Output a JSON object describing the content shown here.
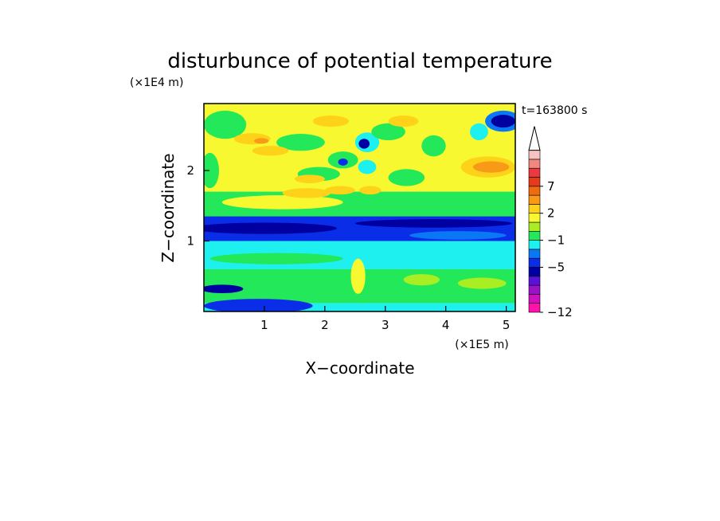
{
  "chart_data": {
    "type": "heatmap",
    "title": "disturbunce of potential temperature",
    "xlabel": "X−coordinate",
    "ylabel": "Z−coordinate",
    "x_scale_label": "(×1E5 m)",
    "y_scale_label": "(×1E4 m)",
    "time_label": "t=163800 s",
    "xlim": [
      0,
      5.15
    ],
    "ylim": [
      0,
      2.95
    ],
    "x_ticks": [
      {
        "value": 1,
        "label": "1"
      },
      {
        "value": 2,
        "label": "2"
      },
      {
        "value": 3,
        "label": "3"
      },
      {
        "value": 4,
        "label": "4"
      },
      {
        "value": 5,
        "label": "5"
      }
    ],
    "y_ticks": [
      {
        "value": 1,
        "label": "1"
      },
      {
        "value": 2,
        "label": "2"
      }
    ],
    "colorbar": {
      "levels_bottom_to_top": [
        "#ff11aa",
        "#d011c0",
        "#9a12c8",
        "#5a11d8",
        "#0000a0",
        "#0a2ee8",
        "#0a78f5",
        "#1ef0f0",
        "#22e85a",
        "#a8ee22",
        "#f8f830",
        "#ffd21a",
        "#f89a18",
        "#f06a10",
        "#e63a1a",
        "#e83a40",
        "#f08880",
        "#f8c2c2"
      ],
      "tick_labels": [
        {
          "label": "−12",
          "level": 0
        },
        {
          "label": "−5",
          "level": 5
        },
        {
          "label": "−1",
          "level": 8
        },
        {
          "label": "2",
          "level": 11
        },
        {
          "label": "7",
          "level": 14
        }
      ]
    },
    "field": {
      "background_color": "#f8f830",
      "regions": [
        {
          "kind": "layer",
          "z_from": 0.0,
          "z_to": 0.12,
          "x_from": 0,
          "x_to": 5.15,
          "color": "#1ef0f0"
        },
        {
          "kind": "layer",
          "z_from": 0.12,
          "z_to": 0.6,
          "x_from": 0,
          "x_to": 5.15,
          "color": "#22e85a"
        },
        {
          "kind": "layer",
          "z_from": 0.6,
          "z_to": 1.0,
          "x_from": 0,
          "x_to": 5.15,
          "color": "#1ef0f0"
        },
        {
          "kind": "layer",
          "z_from": 1.0,
          "z_to": 1.35,
          "x_from": 0,
          "x_to": 5.15,
          "color": "#0a2ee8"
        },
        {
          "kind": "layer",
          "z_from": 1.35,
          "z_to": 1.7,
          "x_from": 0,
          "x_to": 5.15,
          "color": "#22e85a"
        },
        {
          "kind": "blob",
          "x": 0.9,
          "z": 0.08,
          "rx": 0.9,
          "rz": 0.1,
          "color": "#0a2ee8"
        },
        {
          "kind": "blob",
          "x": 0.3,
          "z": 0.32,
          "rx": 0.35,
          "rz": 0.06,
          "color": "#0000a0"
        },
        {
          "kind": "blob",
          "x": 2.55,
          "z": 0.5,
          "rx": 0.12,
          "rz": 0.25,
          "color": "#f8f830"
        },
        {
          "kind": "blob",
          "x": 1.2,
          "z": 0.75,
          "rx": 1.1,
          "rz": 0.08,
          "color": "#22e85a"
        },
        {
          "kind": "blob",
          "x": 3.6,
          "z": 0.45,
          "rx": 0.3,
          "rz": 0.08,
          "color": "#a8ee22"
        },
        {
          "kind": "blob",
          "x": 4.6,
          "z": 0.4,
          "rx": 0.4,
          "rz": 0.08,
          "color": "#a8ee22"
        },
        {
          "kind": "blob",
          "x": 1.0,
          "z": 1.18,
          "rx": 1.2,
          "rz": 0.08,
          "color": "#0000a0"
        },
        {
          "kind": "blob",
          "x": 3.8,
          "z": 1.25,
          "rx": 1.3,
          "rz": 0.06,
          "color": "#0000a0"
        },
        {
          "kind": "blob",
          "x": 4.2,
          "z": 1.08,
          "rx": 0.8,
          "rz": 0.06,
          "color": "#0a78f5"
        },
        {
          "kind": "blob",
          "x": 1.3,
          "z": 1.55,
          "rx": 1.0,
          "rz": 0.1,
          "color": "#f8f830"
        },
        {
          "kind": "blob",
          "x": 1.7,
          "z": 1.68,
          "rx": 0.4,
          "rz": 0.07,
          "color": "#ffd21a"
        },
        {
          "kind": "blob",
          "x": 1.9,
          "z": 1.95,
          "rx": 0.35,
          "rz": 0.1,
          "color": "#22e85a"
        },
        {
          "kind": "blob",
          "x": 2.3,
          "z": 2.15,
          "rx": 0.25,
          "rz": 0.12,
          "color": "#22e85a"
        },
        {
          "kind": "blob",
          "x": 2.3,
          "z": 2.12,
          "rx": 0.08,
          "rz": 0.05,
          "color": "#0a2ee8"
        },
        {
          "kind": "blob",
          "x": 2.7,
          "z": 2.4,
          "rx": 0.2,
          "rz": 0.14,
          "color": "#1ef0f0"
        },
        {
          "kind": "blob",
          "x": 2.65,
          "z": 2.38,
          "rx": 0.09,
          "rz": 0.07,
          "color": "#0000a0"
        },
        {
          "kind": "blob",
          "x": 2.7,
          "z": 2.05,
          "rx": 0.15,
          "rz": 0.1,
          "color": "#1ef0f0"
        },
        {
          "kind": "blob",
          "x": 3.05,
          "z": 2.55,
          "rx": 0.28,
          "rz": 0.12,
          "color": "#22e85a"
        },
        {
          "kind": "blob",
          "x": 3.35,
          "z": 1.9,
          "rx": 0.3,
          "rz": 0.12,
          "color": "#22e85a"
        },
        {
          "kind": "blob",
          "x": 3.8,
          "z": 2.35,
          "rx": 0.2,
          "rz": 0.15,
          "color": "#22e85a"
        },
        {
          "kind": "blob",
          "x": 0.35,
          "z": 2.65,
          "rx": 0.35,
          "rz": 0.2,
          "color": "#22e85a"
        },
        {
          "kind": "blob",
          "x": 1.6,
          "z": 2.4,
          "rx": 0.4,
          "rz": 0.12,
          "color": "#22e85a"
        },
        {
          "kind": "blob",
          "x": 0.1,
          "z": 2.0,
          "rx": 0.15,
          "rz": 0.25,
          "color": "#22e85a"
        },
        {
          "kind": "blob",
          "x": 0.8,
          "z": 2.45,
          "rx": 0.3,
          "rz": 0.08,
          "color": "#ffd21a"
        },
        {
          "kind": "blob",
          "x": 1.1,
          "z": 2.28,
          "rx": 0.3,
          "rz": 0.07,
          "color": "#ffd21a"
        },
        {
          "kind": "blob",
          "x": 1.75,
          "z": 1.88,
          "rx": 0.25,
          "rz": 0.06,
          "color": "#ffd21a"
        },
        {
          "kind": "blob",
          "x": 2.1,
          "z": 2.7,
          "rx": 0.3,
          "rz": 0.08,
          "color": "#ffd21a"
        },
        {
          "kind": "blob",
          "x": 2.25,
          "z": 1.72,
          "rx": 0.25,
          "rz": 0.06,
          "color": "#ffd21a"
        },
        {
          "kind": "blob",
          "x": 2.75,
          "z": 1.72,
          "rx": 0.18,
          "rz": 0.06,
          "color": "#ffd21a"
        },
        {
          "kind": "blob",
          "x": 3.3,
          "z": 2.7,
          "rx": 0.25,
          "rz": 0.08,
          "color": "#ffd21a"
        },
        {
          "kind": "blob",
          "x": 4.7,
          "z": 2.05,
          "rx": 0.45,
          "rz": 0.15,
          "color": "#ffd21a"
        },
        {
          "kind": "blob",
          "x": 4.75,
          "z": 2.05,
          "rx": 0.3,
          "rz": 0.08,
          "color": "#f89a18"
        },
        {
          "kind": "blob",
          "x": 0.95,
          "z": 2.42,
          "rx": 0.12,
          "rz": 0.04,
          "color": "#f89a18"
        },
        {
          "kind": "blob",
          "x": 4.55,
          "z": 2.55,
          "rx": 0.15,
          "rz": 0.12,
          "color": "#1ef0f0"
        },
        {
          "kind": "blob",
          "x": 4.95,
          "z": 2.7,
          "rx": 0.3,
          "rz": 0.15,
          "color": "#0a78f5"
        },
        {
          "kind": "blob",
          "x": 4.95,
          "z": 2.7,
          "rx": 0.2,
          "rz": 0.09,
          "color": "#0000a0"
        }
      ]
    }
  }
}
